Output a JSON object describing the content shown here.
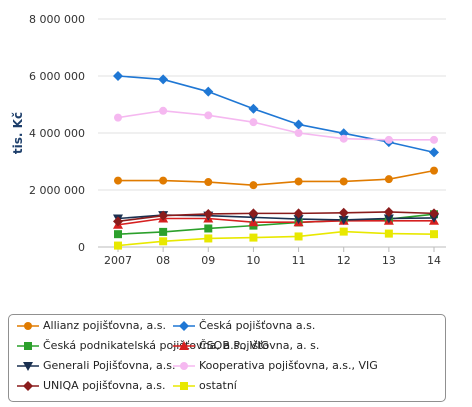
{
  "chart_data": {
    "type": "line",
    "ylabel": "tis. Kč",
    "categories": [
      "2007",
      "08",
      "09",
      "10",
      "11",
      "12",
      "13",
      "14"
    ],
    "ylim": [
      0,
      8000000
    ],
    "yticks": [
      "0",
      "2 000 000",
      "4 000 000",
      "6 000 000",
      "8 000 000"
    ],
    "grid": "horizontal",
    "legend_position": "bottom",
    "series": [
      {
        "name": "Allianz pojišťovna, a.s.",
        "color": "#e07b00",
        "marker": "circle",
        "values": [
          2330000,
          2330000,
          2280000,
          2170000,
          2300000,
          2300000,
          2380000,
          2680000
        ]
      },
      {
        "name": "Česká pojišťovna a.s.",
        "color": "#1f77d4",
        "marker": "diamond",
        "values": [
          6000000,
          5880000,
          5450000,
          4850000,
          4300000,
          3990000,
          3680000,
          3320000
        ]
      },
      {
        "name": "Česká podnikatelská pojišťovna, a.s., VIG",
        "color": "#2ca02c",
        "marker": "square",
        "values": [
          450000,
          530000,
          650000,
          750000,
          860000,
          930000,
          980000,
          1150000
        ]
      },
      {
        "name": "ČSOB Pojišťovna, a. s.",
        "color": "#d62020",
        "marker": "triangle",
        "values": [
          780000,
          1000000,
          1000000,
          870000,
          870000,
          920000,
          920000,
          920000
        ]
      },
      {
        "name": "Generali Pojišťovna, a.s.",
        "color": "#1a3050",
        "marker": "triangle-down",
        "values": [
          1000000,
          1120000,
          1100000,
          1040000,
          980000,
          950000,
          1000000,
          1020000
        ]
      },
      {
        "name": "Kooperativa pojišťovna, a.s., VIG",
        "color": "#f5b8f0",
        "marker": "circle",
        "values": [
          4540000,
          4780000,
          4620000,
          4380000,
          4000000,
          3800000,
          3760000,
          3760000
        ]
      },
      {
        "name": "UNIQA pojišťovna, a.s.",
        "color": "#8a1c1c",
        "marker": "diamond",
        "values": [
          900000,
          1100000,
          1160000,
          1180000,
          1180000,
          1200000,
          1230000,
          1180000
        ]
      },
      {
        "name": "ostatní",
        "color": "#e8e800",
        "marker": "square",
        "values": [
          50000,
          200000,
          300000,
          330000,
          370000,
          540000,
          470000,
          450000
        ]
      }
    ]
  }
}
